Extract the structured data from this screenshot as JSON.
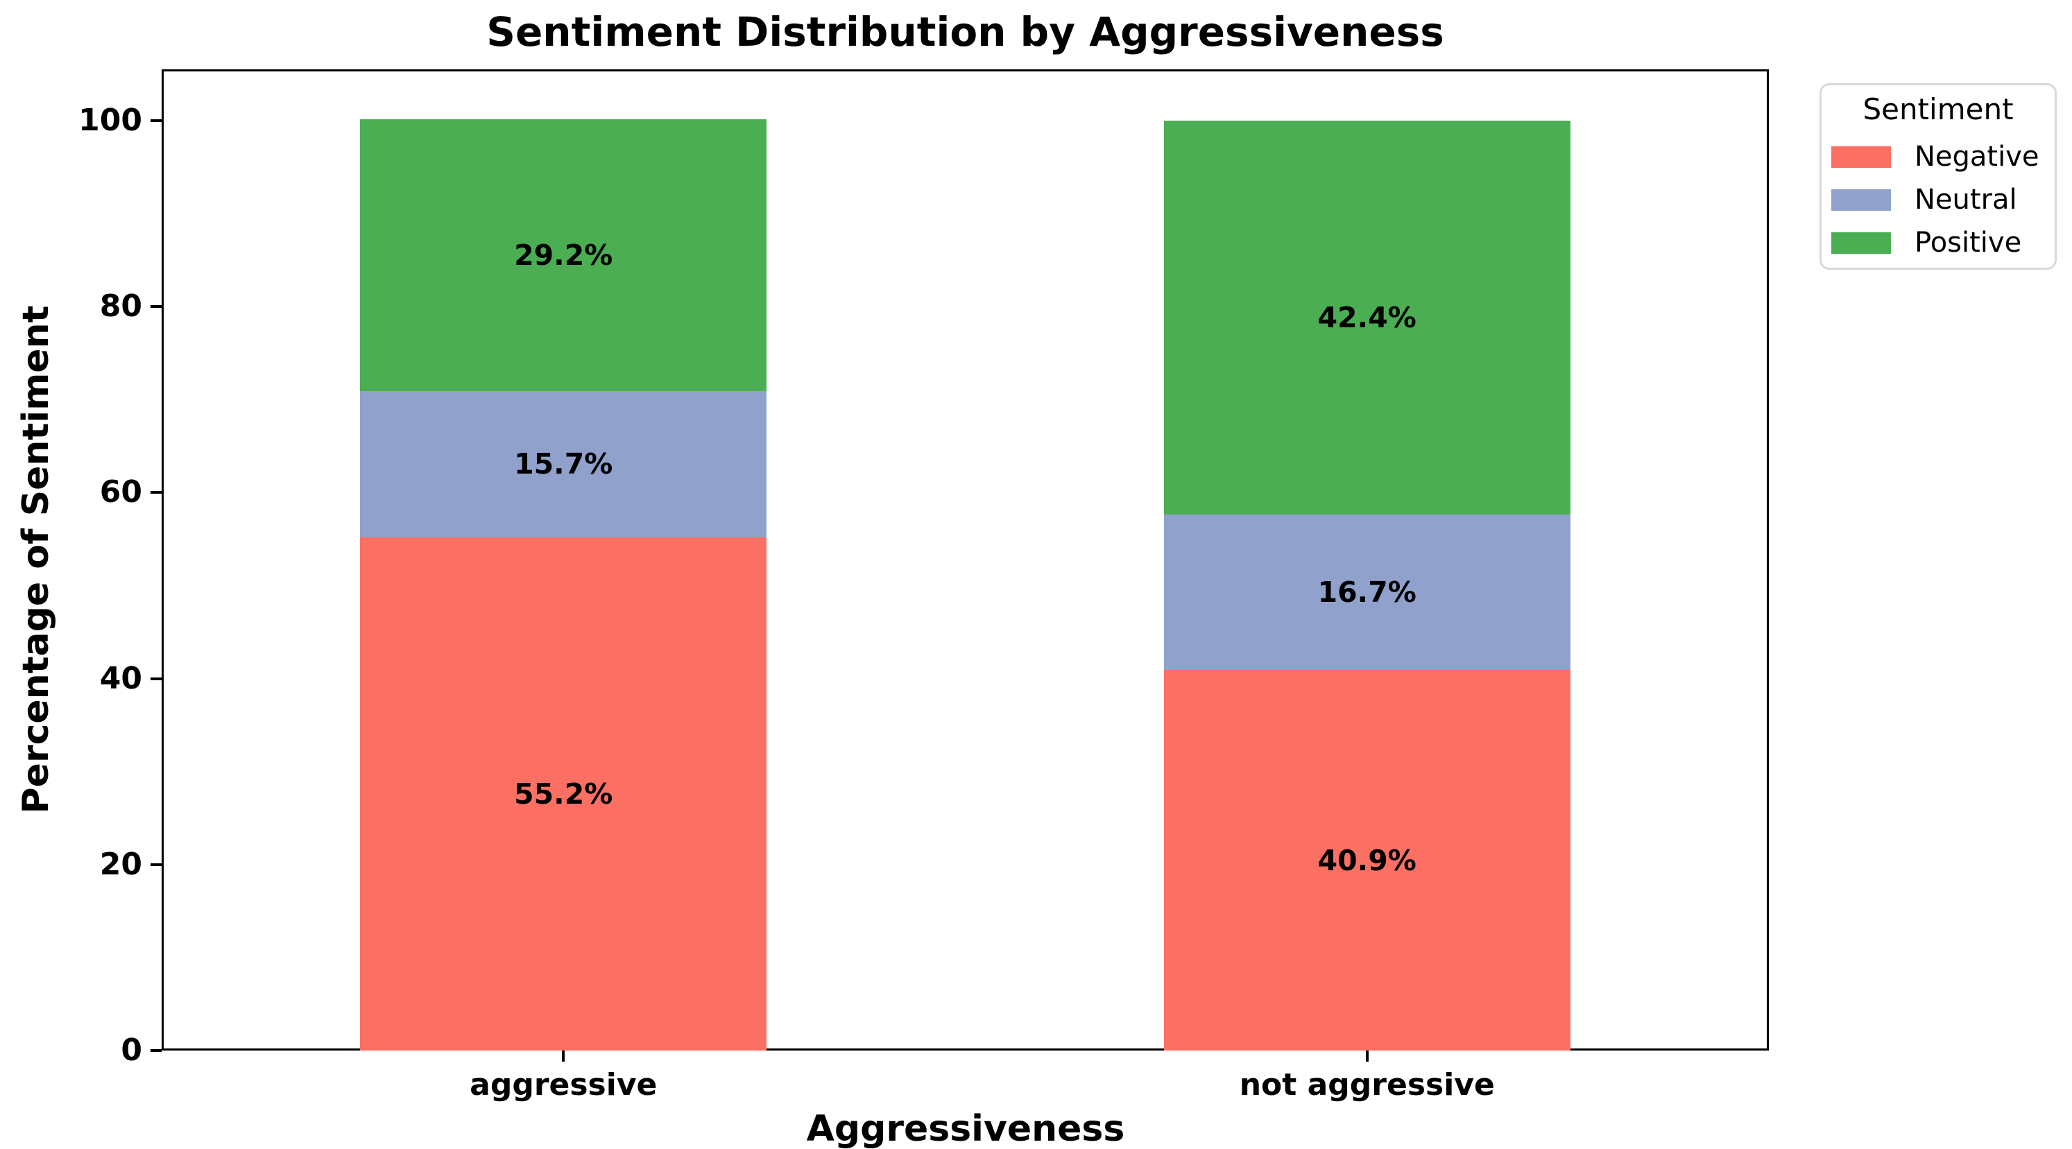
{
  "chart_data": {
    "type": "bar",
    "stacked": true,
    "title": "Sentiment Distribution by Aggressiveness",
    "xlabel": "Aggressiveness",
    "ylabel": "Percentage of Sentiment",
    "categories": [
      "aggressive",
      "not aggressive"
    ],
    "series": [
      {
        "name": "Negative",
        "color": "#FC7063",
        "values": [
          55.2,
          40.9
        ]
      },
      {
        "name": "Neutral",
        "color": "#90A1CC",
        "values": [
          15.7,
          16.7
        ]
      },
      {
        "name": "Positive",
        "color": "#4BAE52",
        "values": [
          29.2,
          42.4
        ]
      }
    ],
    "bar_labels": [
      [
        "55.2%",
        "15.7%",
        "29.2%"
      ],
      [
        "40.9%",
        "16.7%",
        "42.4%"
      ]
    ],
    "ylim": [
      0,
      105.5
    ],
    "yticks": [
      0,
      20,
      40,
      60,
      80,
      100
    ],
    "grid": false,
    "legend": {
      "title": "Sentiment",
      "position": "outside-upper-right",
      "entries": [
        "Negative",
        "Neutral",
        "Positive"
      ]
    }
  }
}
